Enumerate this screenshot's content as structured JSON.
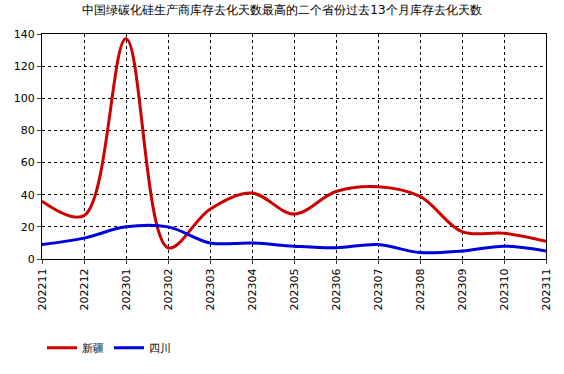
{
  "chart_data": {
    "type": "line",
    "title": "中国绿碳化硅生产商库存去化天数最高的二个省份过去13个月库存去化天数",
    "categories": [
      "202211",
      "202212",
      "202301",
      "202302",
      "202303",
      "202304",
      "202305",
      "202306",
      "202307",
      "202308",
      "202309",
      "202310",
      "202311"
    ],
    "series": [
      {
        "name": "新疆",
        "color": "#cc0000",
        "values": [
          36,
          27,
          137,
          7,
          31,
          41,
          28,
          42,
          45,
          39,
          17,
          16,
          11
        ]
      },
      {
        "name": "四川",
        "color": "#0000dd",
        "values": [
          9,
          13,
          20,
          20,
          10,
          10,
          8,
          7,
          9,
          4,
          5,
          8,
          5
        ]
      }
    ],
    "ylim": [
      0,
      140
    ],
    "yticks": [
      0,
      20,
      40,
      60,
      80,
      100,
      120,
      140
    ],
    "grid": true,
    "legend": "bottom-left",
    "line_style": "smooth"
  }
}
